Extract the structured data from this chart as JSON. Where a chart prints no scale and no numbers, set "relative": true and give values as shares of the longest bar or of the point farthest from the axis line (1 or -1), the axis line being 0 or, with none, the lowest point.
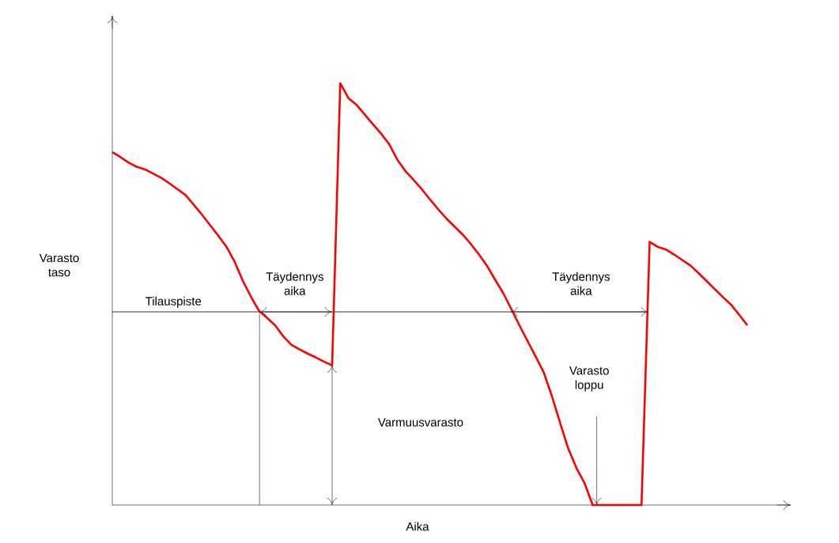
{
  "chart_data": {
    "type": "line",
    "relative": true,
    "xlabel": "Aika",
    "ylabel": "Varasto taso",
    "categories": [
      null,
      null,
      null,
      null,
      null,
      null,
      null,
      null,
      null,
      null,
      null,
      null,
      null,
      null,
      null,
      null,
      null,
      null,
      null,
      null,
      null,
      null,
      null,
      null,
      null,
      null,
      null,
      null,
      null,
      null,
      null,
      null,
      null,
      null,
      null,
      null,
      null,
      null,
      null,
      null,
      null,
      null,
      null,
      null,
      null,
      null,
      null,
      null,
      null,
      null,
      null,
      null,
      null,
      null,
      null,
      null,
      null,
      null,
      null,
      null,
      null,
      null,
      null,
      null,
      null,
      null,
      null,
      null,
      null,
      null,
      null,
      null,
      null,
      null,
      null,
      null,
      null,
      null,
      null
    ],
    "series": [
      {
        "color": "#ff0000",
        "values": [
          0.837,
          0.825,
          0.812,
          0.802,
          0.796,
          0.786,
          0.776,
          0.763,
          0.749,
          0.735,
          0.712,
          0.689,
          0.664,
          0.639,
          0.613,
          0.578,
          0.533,
          0.495,
          0.461,
          0.444,
          0.426,
          0.4,
          0.38,
          0.369,
          0.359,
          0.35,
          0.34,
          0.331,
          1.0,
          0.965,
          0.949,
          0.926,
          0.903,
          0.881,
          0.856,
          0.819,
          0.792,
          0.771,
          0.749,
          0.725,
          0.702,
          0.68,
          0.661,
          0.642,
          0.62,
          0.595,
          0.568,
          0.535,
          0.503,
          0.465,
          0.426,
          0.389,
          0.352,
          0.314,
          0.258,
          0.195,
          0.134,
          0.088,
          0.052,
          0,
          0,
          0,
          0,
          0,
          0,
          0,
          0.624,
          0.612,
          0.606,
          0.594,
          0.581,
          0.568,
          0.55,
          0.531,
          0.512,
          0.493,
          0.475,
          0.451,
          0.426
        ]
      }
    ],
    "ref_lines": [
      {
        "axis": "y",
        "value": 0.458,
        "label": "Tilauspiste",
        "color": "#000000"
      }
    ],
    "annotations": [
      "Täydennys aika",
      "Täydennys aika",
      "Varasto loppu",
      "Varmuusvarasto"
    ]
  }
}
